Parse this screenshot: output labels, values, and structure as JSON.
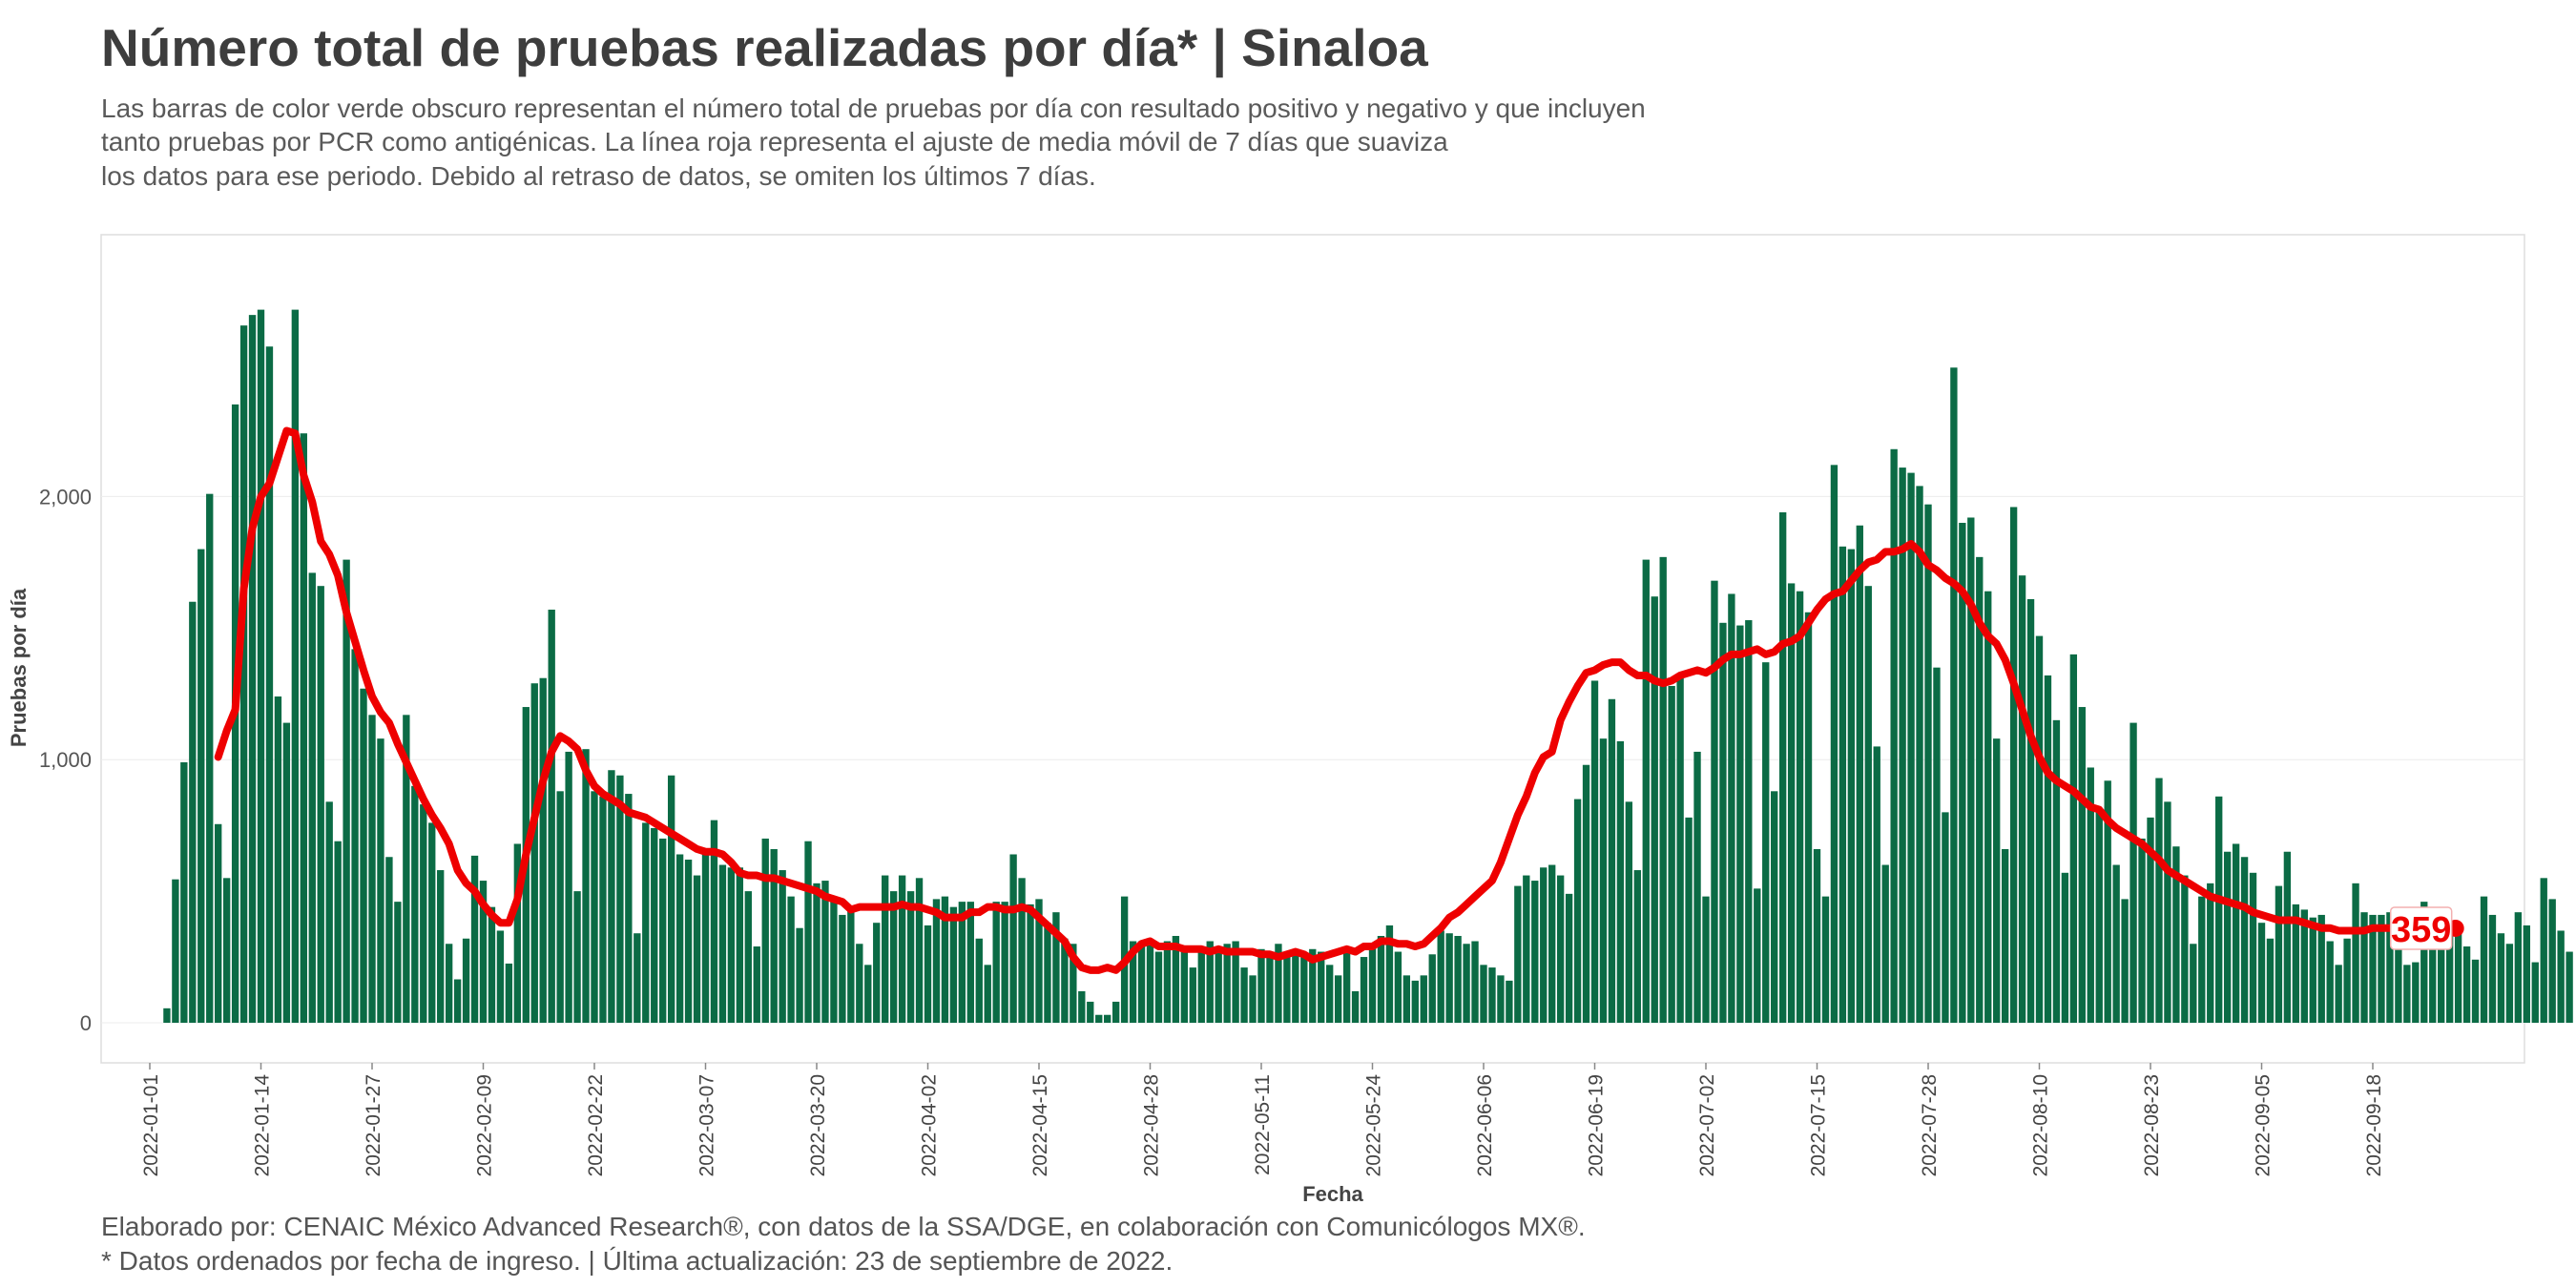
{
  "header": {
    "title": "Número total de pruebas realizadas por día* | Sinaloa",
    "subtitle_lines": [
      "Las barras de color verde obscuro representan el número total de pruebas por día con resultado positivo y negativo y que incluyen",
      "tanto pruebas por PCR como antigénicas. La línea roja representa el ajuste de media móvil de 7 días que suaviza",
      "los datos para ese periodo. Debido al retraso de datos, se omiten los últimos 7 días."
    ]
  },
  "footer": {
    "caption_lines": [
      "Elaborado por: CENAIC México Advanced Research®, con datos de la SSA/DGE, en colaboración con Comunicólogos MX®.",
      "* Datos ordenados por fecha de ingreso. | Última actualización: 23 de septiembre de 2022."
    ]
  },
  "colors": {
    "bars": "#0b6b45",
    "line": "#ee0000",
    "grid": "#ececec",
    "frame": "#dddddd"
  },
  "chart_data": {
    "type": "bar",
    "xlabel": "Fecha",
    "ylabel": "Pruebas por día",
    "ylim": [
      0,
      2850
    ],
    "yticks": [
      0,
      1000,
      2000
    ],
    "ytick_labels": [
      "0",
      "1,000",
      "2,000"
    ],
    "x_start": "2022-01-03",
    "x_end": "2022-09-16",
    "xtick_labels": [
      "2022-01-01",
      "2022-01-14",
      "2022-01-27",
      "2022-02-09",
      "2022-02-22",
      "2022-03-07",
      "2022-03-20",
      "2022-04-02",
      "2022-04-15",
      "2022-04-28",
      "2022-05-11",
      "2022-05-24",
      "2022-06-06",
      "2022-06-19",
      "2022-07-02",
      "2022-07-15",
      "2022-07-28",
      "2022-08-10",
      "2022-08-23",
      "2022-09-05",
      "2022-09-18"
    ],
    "grid": true,
    "series": [
      {
        "type": "bar",
        "values": [
          55,
          545,
          990,
          1600,
          1800,
          2010,
          755,
          550,
          2350,
          2650,
          2690,
          2710,
          2570,
          1240,
          1140,
          2710,
          2240,
          1710,
          1660,
          840,
          690,
          1760,
          1420,
          1270,
          1170,
          1080,
          630,
          460,
          1170,
          900,
          830,
          760,
          580,
          300,
          165,
          320,
          635,
          540,
          440,
          350,
          225,
          680,
          1200,
          1290,
          1310,
          1570,
          880,
          1030,
          500,
          1040,
          880,
          860,
          960,
          940,
          870,
          340,
          760,
          740,
          700,
          940,
          640,
          620,
          560,
          660,
          770,
          600,
          590,
          590,
          500,
          290,
          700,
          660,
          580,
          480,
          360,
          690,
          530,
          540,
          480,
          410,
          430,
          300,
          220,
          380,
          560,
          500,
          560,
          500,
          550,
          370,
          470,
          480,
          440,
          460,
          460,
          320,
          220,
          460,
          460,
          640,
          550,
          450,
          470,
          380,
          420,
          320,
          300,
          120,
          80,
          30,
          30,
          80,
          480,
          310,
          310,
          300,
          270,
          310,
          330,
          270,
          210,
          280,
          310,
          290,
          300,
          310,
          210,
          180,
          280,
          250,
          300,
          270,
          280,
          260,
          280,
          270,
          220,
          180,
          280,
          120,
          250,
          300,
          330,
          370,
          270,
          180,
          160,
          180,
          260,
          350,
          340,
          330,
          300,
          310,
          220,
          210,
          180,
          160,
          520,
          560,
          540,
          590,
          600,
          560,
          490,
          850,
          980,
          1300,
          1080,
          1230,
          1070,
          840,
          580,
          1760,
          1620,
          1770,
          1280,
          1310,
          780,
          1030,
          480,
          1680,
          1520,
          1630,
          1510,
          1530,
          510,
          1370,
          880,
          1940,
          1670,
          1640,
          1560,
          660,
          480,
          2120,
          1810,
          1800,
          1890,
          1660,
          1050,
          600,
          2180,
          2110,
          2090,
          2040,
          1970,
          1350,
          800,
          2490,
          1900,
          1920,
          1770,
          1640,
          1080,
          660,
          1960,
          1700,
          1610,
          1470,
          1320,
          1150,
          570,
          1400,
          1200,
          970,
          800,
          920,
          600,
          470,
          1140,
          700,
          780,
          930,
          840,
          670,
          560,
          300,
          480,
          530,
          860,
          650,
          680,
          630,
          570,
          380,
          320,
          520,
          650,
          450,
          430,
          400,
          410,
          310,
          220,
          320,
          530,
          420,
          410,
          410,
          420,
          380,
          220,
          230,
          460,
          380,
          300,
          370,
          340,
          290,
          240,
          480,
          410,
          340,
          300,
          420,
          370,
          230,
          550,
          470,
          350,
          270
        ]
      },
      {
        "type": "line",
        "name": "Media móvil de 7 días",
        "values": [
          null,
          null,
          null,
          null,
          null,
          null,
          1010,
          1110,
          1190,
          1650,
          1880,
          2000,
          2050,
          2150,
          2250,
          2240,
          2080,
          1980,
          1830,
          1780,
          1700,
          1560,
          1450,
          1340,
          1240,
          1180,
          1140,
          1060,
          990,
          920,
          850,
          790,
          740,
          680,
          580,
          530,
          500,
          450,
          410,
          380,
          380,
          470,
          640,
          780,
          920,
          1030,
          1090,
          1070,
          1040,
          960,
          900,
          870,
          850,
          830,
          800,
          790,
          780,
          760,
          740,
          720,
          700,
          680,
          660,
          650,
          650,
          640,
          610,
          570,
          560,
          560,
          550,
          550,
          540,
          530,
          520,
          510,
          500,
          480,
          470,
          460,
          430,
          440,
          440,
          440,
          440,
          440,
          450,
          440,
          440,
          430,
          420,
          400,
          400,
          400,
          420,
          420,
          440,
          440,
          430,
          430,
          440,
          430,
          400,
          370,
          340,
          310,
          250,
          210,
          200,
          200,
          210,
          200,
          230,
          270,
          300,
          310,
          290,
          290,
          290,
          280,
          280,
          280,
          270,
          280,
          270,
          270,
          270,
          270,
          260,
          260,
          250,
          260,
          270,
          260,
          240,
          250,
          260,
          270,
          280,
          270,
          290,
          290,
          310,
          310,
          300,
          300,
          290,
          300,
          330,
          360,
          400,
          420,
          450,
          480,
          510,
          540,
          610,
          700,
          790,
          860,
          950,
          1010,
          1030,
          1150,
          1220,
          1280,
          1330,
          1340,
          1360,
          1370,
          1370,
          1340,
          1320,
          1320,
          1300,
          1290,
          1300,
          1320,
          1330,
          1340,
          1330,
          1350,
          1380,
          1400,
          1400,
          1410,
          1420,
          1400,
          1410,
          1440,
          1450,
          1470,
          1520,
          1570,
          1610,
          1630,
          1640,
          1680,
          1720,
          1750,
          1760,
          1790,
          1790,
          1800,
          1820,
          1790,
          1740,
          1720,
          1690,
          1670,
          1640,
          1590,
          1520,
          1470,
          1440,
          1380,
          1290,
          1190,
          1090,
          1010,
          950,
          920,
          900,
          880,
          850,
          820,
          810,
          770,
          740,
          720,
          700,
          680,
          650,
          620,
          580,
          560,
          540,
          520,
          500,
          480,
          470,
          460,
          450,
          440,
          420,
          410,
          400,
          390,
          390,
          390,
          380,
          370,
          360,
          360,
          350,
          350,
          350,
          350,
          360,
          360,
          360,
          360,
          360,
          370,
          360,
          360,
          359
        ]
      }
    ],
    "last_value_label": "359"
  }
}
